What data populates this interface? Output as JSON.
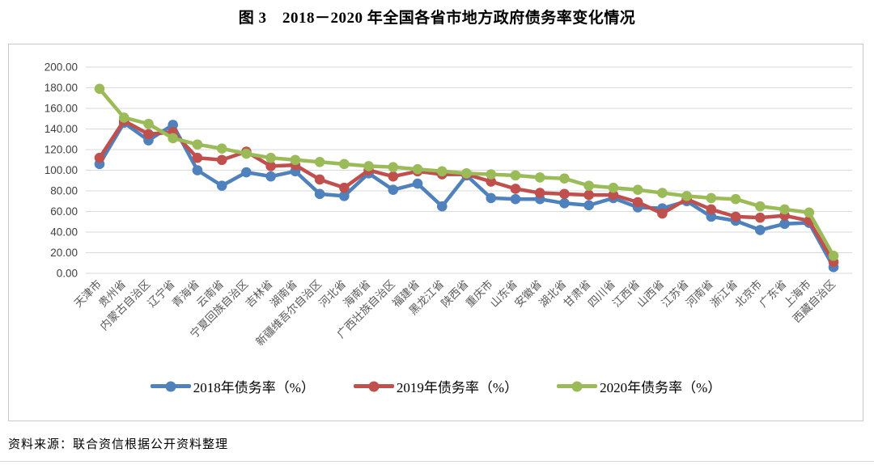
{
  "figure": {
    "title": "图 3　2018－2020 年全国各省市地方政府债务率变化情况",
    "source": "资料来源：联合资信根据公开资料整理"
  },
  "chart_data": {
    "type": "line",
    "title": "图 3　2018－2020 年全国各省市地方政府债务率变化情况",
    "categories": [
      "天津市",
      "贵州省",
      "内蒙古自治区",
      "辽宁省",
      "青海省",
      "云南省",
      "宁夏回族自治区",
      "吉林省",
      "湖南省",
      "新疆维吾尔自治区",
      "河北省",
      "海南省",
      "广西壮族自治区",
      "福建省",
      "黑龙江省",
      "陕西省",
      "重庆市",
      "山东省",
      "安徽省",
      "湖北省",
      "甘肃省",
      "四川省",
      "江西省",
      "山西省",
      "江苏省",
      "河南省",
      "浙江省",
      "北京市",
      "广东省",
      "上海市",
      "西藏自治区"
    ],
    "series": [
      {
        "name": "2018年债务率（%）",
        "color": "#4F81BD",
        "values": [
          106,
          146,
          129,
          144,
          100,
          85,
          98,
          94,
          99,
          77,
          75,
          97,
          81,
          87,
          65,
          95,
          73,
          72,
          72,
          68,
          66,
          73,
          64,
          63,
          70,
          55,
          51,
          42,
          48,
          49,
          6
        ]
      },
      {
        "name": "2019年债务率（%）",
        "color": "#C0504D",
        "values": [
          112,
          148,
          135,
          137,
          112,
          110,
          118,
          104,
          105,
          91,
          83,
          100,
          94,
          99,
          96,
          96,
          89,
          82,
          78,
          77,
          76,
          76,
          69,
          58,
          72,
          62,
          55,
          54,
          56,
          51,
          11
        ]
      },
      {
        "name": "2020年债务率（%）",
        "color": "#9BBB59",
        "values": [
          179,
          151,
          145,
          131,
          125,
          121,
          116,
          112,
          110,
          108,
          106,
          104,
          103,
          101,
          99,
          97,
          96,
          95,
          93,
          92,
          85,
          83,
          81,
          78,
          75,
          73,
          72,
          65,
          62,
          59,
          17
        ]
      }
    ],
    "ylim": [
      0,
      200
    ],
    "ytick_step": 20,
    "ytick_format": "two-decimals",
    "grid": "horizontal",
    "legend_position": "bottom",
    "x_label_rotation": 45
  },
  "style": {
    "gridline_color": "#d9d9d9",
    "y_label_color": "#404040",
    "x_label_color": "#595959"
  }
}
